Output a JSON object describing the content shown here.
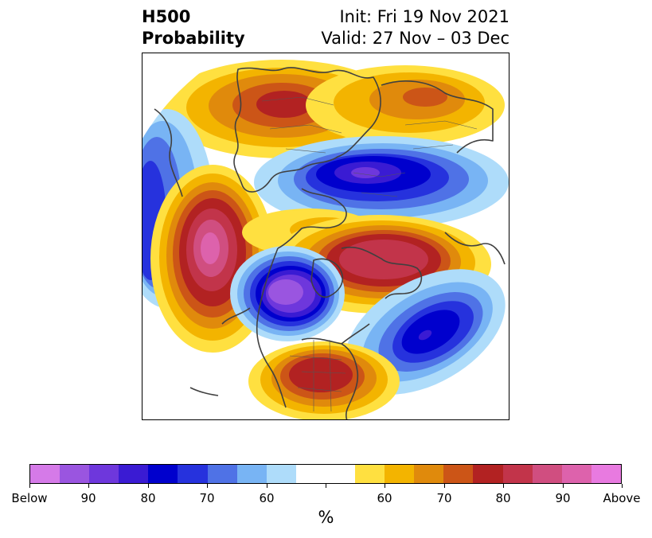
{
  "title": {
    "left_line1": "H500",
    "left_line2": "Probability",
    "right_line1": "Init: Fri 19 Nov 2021",
    "right_line2": "Valid: 27 Nov – 03 Dec"
  },
  "colorbar": {
    "colors": [
      "#d57ae8",
      "#9a55e0",
      "#6e37dc",
      "#3a1bd3",
      "#0000cd",
      "#2632dd",
      "#4f72e6",
      "#78b4f4",
      "#aedcfa",
      "#ffffff",
      "#ffffff",
      "#ffe040",
      "#f3b400",
      "#e08a0c",
      "#cc5517",
      "#b22222",
      "#c2344a",
      "#d04e80",
      "#dd62ac",
      "#e87ae0"
    ],
    "ticks": [
      {
        "index": 0,
        "label": "Below"
      },
      {
        "index": 2,
        "label": "90"
      },
      {
        "index": 4,
        "label": "80"
      },
      {
        "index": 6,
        "label": "70"
      },
      {
        "index": 8,
        "label": "60"
      },
      {
        "index": 10,
        "label": ""
      },
      {
        "index": 12,
        "label": "60"
      },
      {
        "index": 14,
        "label": "70"
      },
      {
        "index": 16,
        "label": "80"
      },
      {
        "index": 18,
        "label": "90"
      },
      {
        "index": 20,
        "label": "Above"
      }
    ],
    "units": "%"
  },
  "map": {
    "projection": "north-polar-stereographic",
    "anomalies": [
      {
        "id": "anomaly-above-siberia",
        "sign": "above",
        "peak_percent": 80
      },
      {
        "id": "anomaly-above-beaufort-arctic",
        "sign": "above",
        "peak_percent": 70
      },
      {
        "id": "anomaly-below-central-arctic",
        "sign": "below",
        "peak_percent": 90
      },
      {
        "id": "anomaly-above-north-pacific",
        "sign": "above",
        "peak_percent": 90
      },
      {
        "id": "anomaly-below-western-pacific",
        "sign": "below",
        "peak_percent": 70
      },
      {
        "id": "anomaly-below-western-canada",
        "sign": "below",
        "peak_percent": 90
      },
      {
        "id": "anomaly-above-greenland",
        "sign": "above",
        "peak_percent": 90
      },
      {
        "id": "anomaly-below-north-atlantic",
        "sign": "below",
        "peak_percent": 80
      },
      {
        "id": "anomaly-above-eastern-us",
        "sign": "above",
        "peak_percent": 80
      },
      {
        "id": "anomaly-above-gulf-alaska",
        "sign": "above",
        "peak_percent": 60
      }
    ]
  }
}
